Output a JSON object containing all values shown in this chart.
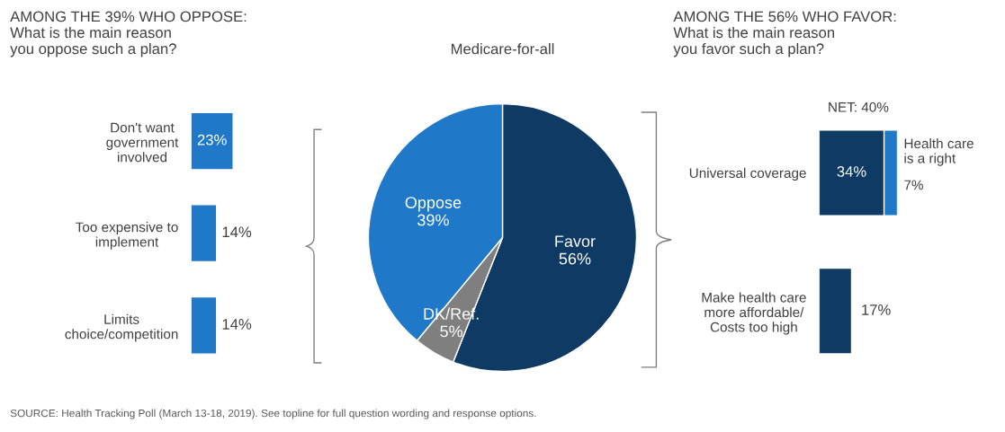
{
  "chart_data": [
    {
      "type": "bar",
      "orientation": "horizontal",
      "title": "AMONG THE 39% WHO OPPOSE: What is the main reason you oppose such a plan?",
      "categories": [
        "Don't want government involved",
        "Too expensive to implement",
        "Limits choice/competition"
      ],
      "values": [
        23,
        14,
        14
      ],
      "value_labels": [
        "23%",
        "14%",
        "14%"
      ],
      "color": "#1f78c8",
      "legend": false
    },
    {
      "type": "pie",
      "title": "Medicare-for-all",
      "categories": [
        "Favor",
        "DK/Ref.",
        "Oppose"
      ],
      "values": [
        56,
        5,
        39
      ],
      "value_labels": [
        "56%",
        "5%",
        "39%"
      ],
      "colors": [
        "#0e3a64",
        "#7f7f7f",
        "#1f78c8"
      ],
      "annotations": [
        "SOURCE: Health Tracking Poll (March 13-18, 2019). See topline for full question wording and response options."
      ]
    },
    {
      "type": "bar",
      "orientation": "horizontal",
      "stacked": true,
      "title": "AMONG THE 56% WHO FAVOR: What is the main reason you favor such a plan?",
      "categories": [
        "Universal coverage",
        "Make health care more affordable/ Costs too high"
      ],
      "series": [
        {
          "color": "#0e3a64",
          "values": [
            34,
            17
          ],
          "value_labels": [
            "34%",
            "17%"
          ]
        },
        {
          "name": "Health care is a right",
          "color": "#1f78c8",
          "values": [
            7,
            null
          ],
          "value_labels": [
            "7%",
            null
          ]
        }
      ],
      "totals": [
        "NET: 40%",
        null
      ],
      "legend": false
    }
  ]
}
